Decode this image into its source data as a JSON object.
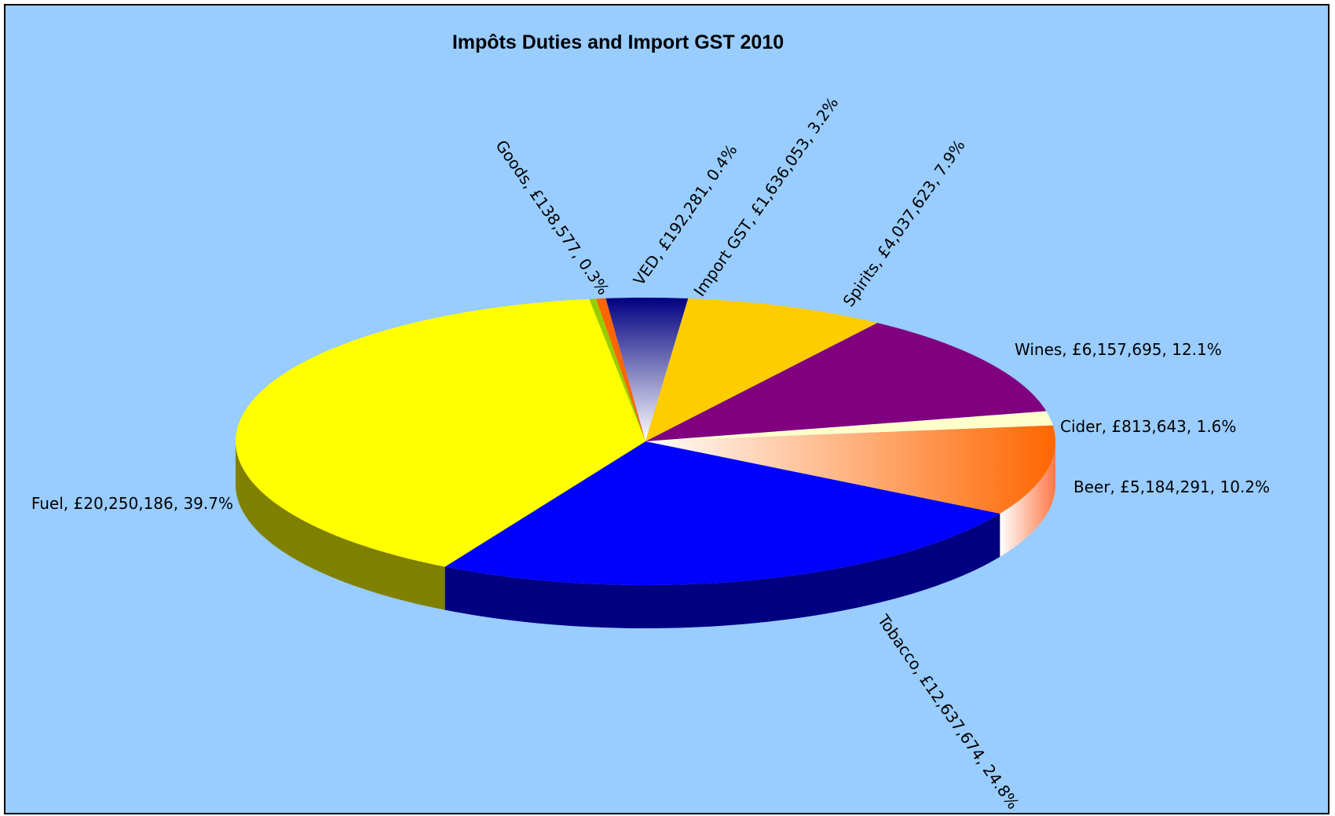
{
  "chart_data": {
    "type": "pie",
    "title": "Impôts Duties and Import GST 2010",
    "background_color": "#99ccff",
    "three_d": true,
    "slices": [
      {
        "name": "Goods",
        "value": 138577,
        "percent": "0.3%",
        "label": "Goods, £138,577, 0.3%",
        "color": "#99cc00"
      },
      {
        "name": "VED",
        "value": 192281,
        "percent": "0.4%",
        "label": "VED, £192,281, 0.4%",
        "color": "#ff6600"
      },
      {
        "name": "Import GST",
        "value": 1636053,
        "percent": "3.2%",
        "label": "Import GST, £1,636,053, 3.2%",
        "color": "#000080"
      },
      {
        "name": "Spirits",
        "value": 4037623,
        "percent": "7.9%",
        "label": "Spirits, £4,037,623, 7.9%",
        "color": "#ffcc00"
      },
      {
        "name": "Wines",
        "value": 6157695,
        "percent": "12.1%",
        "label": "Wines, £6,157,695, 12.1%",
        "color": "#800080"
      },
      {
        "name": "Cider",
        "value": 813643,
        "percent": "1.6%",
        "label": "Cider, £813,643, 1.6%",
        "color": "#ffffcc"
      },
      {
        "name": "Beer",
        "value": 5184291,
        "percent": "10.2%",
        "label": "Beer, £5,184,291, 10.2%",
        "color": "#ff6600"
      },
      {
        "name": "Tobacco",
        "value": 12637674,
        "percent": "24.8%",
        "label": "Tobacco, £12,637,674, 24.8%",
        "color": "#0000ff"
      },
      {
        "name": "Fuel",
        "value": 20250186,
        "percent": "39.7%",
        "label": "Fuel, £20,250,186, 39.7%",
        "color": "#ffff00"
      }
    ]
  }
}
